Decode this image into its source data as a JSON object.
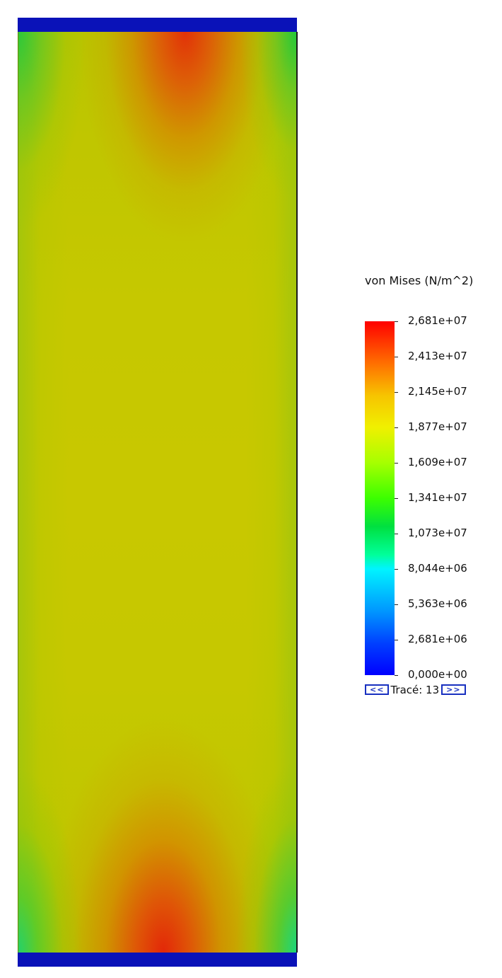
{
  "legend": {
    "title": "von Mises (N/m^2)",
    "ticks": [
      "2,681e+07",
      "2,413e+07",
      "2,145e+07",
      "1,877e+07",
      "1,609e+07",
      "1,341e+07",
      "1,073e+07",
      "8,044e+06",
      "5,363e+06",
      "2,681e+06",
      "0,000e+00"
    ],
    "colors": {
      "max": "#ff0000",
      "mid": "#3cff00",
      "min": "#0000ff"
    }
  },
  "trace": {
    "prev_label": "<<",
    "label": "Tracé: 13",
    "next_label": ">>"
  },
  "model": {
    "plate_color": "#0a12b8"
  }
}
